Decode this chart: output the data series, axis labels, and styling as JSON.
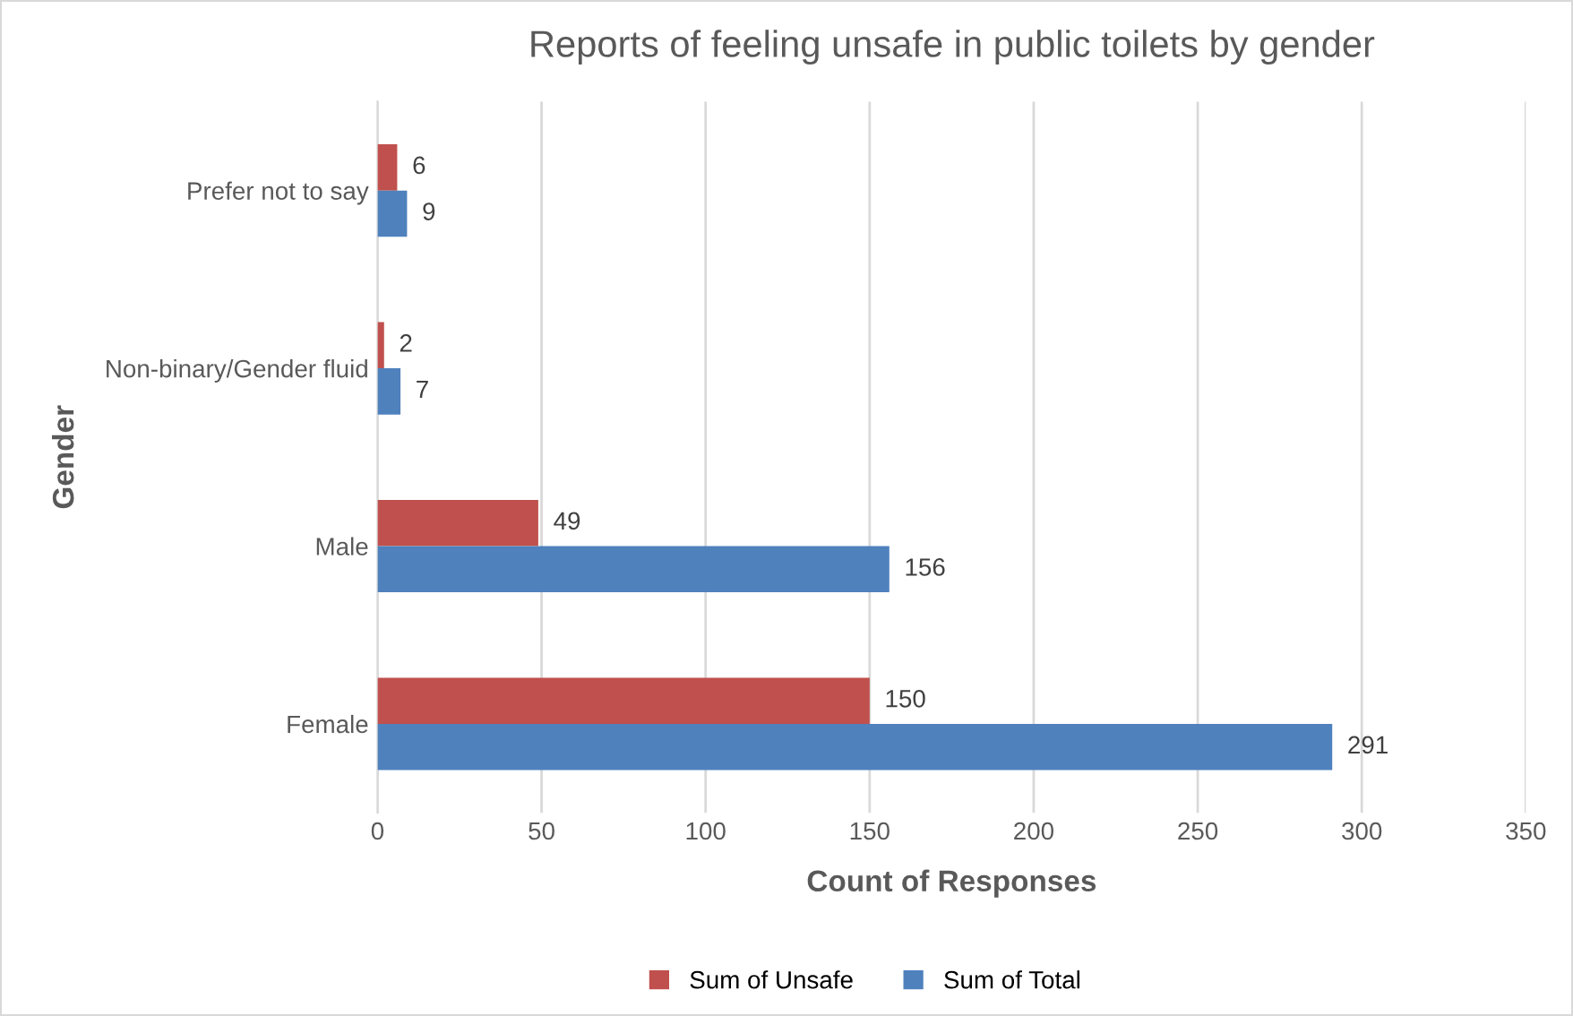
{
  "chart_data": {
    "type": "bar",
    "orientation": "horizontal",
    "title": "Reports of feeling unsafe in public toilets by gender",
    "xlabel": "Count of Responses",
    "ylabel": "Gender",
    "categories": [
      "Prefer not to say",
      "Non-binary/Gender fluid",
      "Male",
      "Female"
    ],
    "series": [
      {
        "name": "Sum of Unsafe",
        "color": "#c0504d",
        "values": [
          6,
          2,
          49,
          150
        ]
      },
      {
        "name": "Sum of Total",
        "color": "#4f81bd",
        "values": [
          9,
          7,
          156,
          291
        ]
      }
    ],
    "xlim": [
      0,
      350
    ],
    "xticks": [
      0,
      50,
      100,
      150,
      200,
      250,
      300,
      350
    ],
    "grid": "x",
    "legend": "bottom",
    "data_labels": true
  }
}
